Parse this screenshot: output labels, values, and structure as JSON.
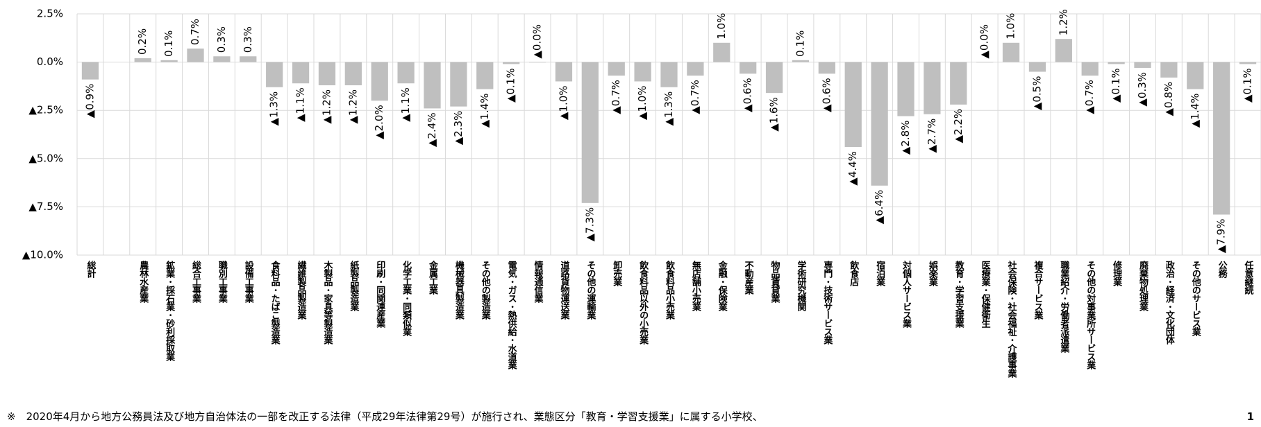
{
  "chart_data": {
    "type": "bar",
    "categories": [
      "総計",
      null,
      "農林水産業",
      "鉱業･採石業･砂利採取業",
      "総合工事業",
      "職別工事業",
      "設備工事業",
      "食料品･たばこ製造業",
      "繊維製品製造業",
      "木製品･家具等製造業",
      "紙製品製造業",
      "印刷･同関連産業",
      "化学工業･同類似業",
      "金属工業",
      "機械器具製造業",
      "その他の製造業",
      "電気･ガス･熱供給･水道業",
      "情報通信業",
      "道路貨物運送業",
      "その他の運輸業",
      "卸売業",
      "飲食料品以外の小売業",
      "飲食料品小売業",
      "無店舗小売業",
      "金融･保険業",
      "不動産業",
      "物品賃貸業",
      "学術研究機関",
      "専門･技術サービス業",
      "飲食店",
      "宿泊業",
      "対個人サービス業",
      "娯楽業",
      "教育･学習支援業",
      "医療業･保健衛生",
      "社会保険･社会福祉･介護事業",
      "複合サービス業",
      "職業紹介･労働者派遣業",
      "その他の対事業所サービス業",
      "修理業",
      "廃棄物処理業",
      "政治･経済･文化団体",
      "その他のサービス業",
      "公務",
      "任意継続"
    ],
    "values": [
      -0.9,
      null,
      0.2,
      0.1,
      0.7,
      0.3,
      0.3,
      -1.3,
      -1.1,
      -1.2,
      -1.2,
      -2.0,
      -1.1,
      -2.4,
      -2.3,
      -1.4,
      -0.1,
      0,
      -1.0,
      -7.3,
      -0.7,
      -1.0,
      -1.3,
      -0.7,
      1.0,
      -0.6,
      -1.6,
      0.1,
      -0.6,
      -4.4,
      -6.4,
      -2.8,
      -2.7,
      -2.2,
      0,
      1.0,
      -0.5,
      1.2,
      -0.7,
      -0.1,
      -0.3,
      -0.8,
      -1.4,
      -7.9,
      -0.1
    ],
    "value_labels": [
      "▲0.9%",
      null,
      "0.2%",
      "0.1%",
      "0.7%",
      "0.3%",
      "0.3%",
      "▲1.3%",
      "▲1.1%",
      "▲1.2%",
      "▲1.2%",
      "▲2.0%",
      "▲1.1%",
      "▲2.4%",
      "▲2.3%",
      "▲1.4%",
      "▲0.1%",
      "▲0.0%",
      "▲1.0%",
      "▲7.3%",
      "▲0.7%",
      "▲1.0%",
      "▲1.3%",
      "▲0.7%",
      "1.0%",
      "▲0.6%",
      "▲1.6%",
      "0.1%",
      "▲0.6%",
      "▲4.4%",
      "▲6.4%",
      "▲2.8%",
      "▲2.7%",
      "▲2.2%",
      "▲0.0%",
      "1.0%",
      "▲0.5%",
      "1.2%",
      "▲0.7%",
      "▲0.1%",
      "▲0.3%",
      "▲0.8%",
      "▲1.4%",
      "▲7.9%",
      "▲0.1%"
    ],
    "color": "#bfbfbf",
    "ylim": [
      -10,
      2.5
    ],
    "yticks": [
      {
        "value": -10,
        "label": "▲10.0%"
      },
      {
        "value": -7.5,
        "label": "▲7.5%"
      },
      {
        "value": -5,
        "label": "▲5.0%"
      },
      {
        "value": -2.5,
        "label": "▲2.5%"
      },
      {
        "value": 0,
        "label": "0.0%"
      },
      {
        "value": 2.5,
        "label": "2.5%"
      }
    ],
    "grid": true,
    "footnote": "※　2020年4月から地方公務員法及び地方自治体法の一部を改正する法律（平成29年法律第29号）が施行され、業態区分「教育・学習支援業」に属する小学校、",
    "page_number": "1"
  }
}
